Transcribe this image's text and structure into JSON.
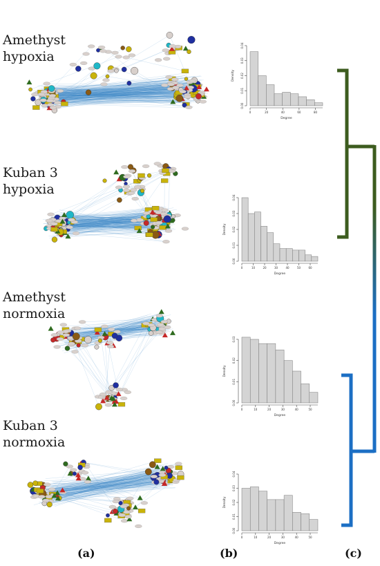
{
  "conditions": [
    {
      "line1": "Amethyst",
      "line2": "hypoxia"
    },
    {
      "line1": "Kuban 3",
      "line2": "hypoxia"
    },
    {
      "line1": "Amethyst",
      "line2": "normoxia"
    },
    {
      "line1": "Kuban 3",
      "line2": "normoxia"
    }
  ],
  "panel_labels": {
    "a": "(a)",
    "b": "(b)",
    "c": "(c)"
  },
  "histograms": [
    {
      "xlabel": "Degree",
      "ylabel": "Density",
      "yticks": [
        "0.00",
        "0.01",
        "0.02",
        "0.03",
        "0.04"
      ],
      "xticks": [
        "0",
        "20",
        "40",
        "60",
        "80"
      ],
      "values": [
        0.036,
        0.02,
        0.014,
        0.008,
        0.009,
        0.008,
        0.006,
        0.004,
        0.002
      ]
    },
    {
      "xlabel": "Degree",
      "ylabel": "Density",
      "yticks": [
        "0.00",
        "0.01",
        "0.02",
        "0.03",
        "0.04"
      ],
      "xticks": [
        "0",
        "10",
        "20",
        "30",
        "40",
        "50",
        "60"
      ],
      "values": [
        0.04,
        0.03,
        0.031,
        0.022,
        0.018,
        0.011,
        0.008,
        0.008,
        0.007,
        0.007,
        0.004,
        0.003
      ]
    },
    {
      "xlabel": "Degree",
      "ylabel": "Density",
      "yticks": [
        "0.00",
        "0.01",
        "0.02",
        "0.03"
      ],
      "xticks": [
        "0",
        "10",
        "20",
        "30",
        "40",
        "50"
      ],
      "values": [
        0.031,
        0.03,
        0.028,
        0.028,
        0.025,
        0.02,
        0.015,
        0.009,
        0.005
      ]
    },
    {
      "xlabel": "Degree",
      "ylabel": "Density",
      "yticks": [
        "0.00",
        "0.01",
        "0.02",
        "0.03",
        "0.04"
      ],
      "xticks": [
        "0",
        "10",
        "20",
        "30",
        "40",
        "50"
      ],
      "values": [
        0.03,
        0.031,
        0.028,
        0.022,
        0.022,
        0.025,
        0.013,
        0.012,
        0.008
      ]
    }
  ],
  "colors": {
    "edge": "#3a86c8",
    "dendro_green": "#3d5c1f",
    "dendro_blue": "#1c6fc4",
    "hist_fill": "#d4d4d4",
    "node_gold": "#c9b30a",
    "node_navy": "#1f2fa0",
    "node_teal": "#1fb7c7",
    "node_green": "#2f6b1f",
    "node_red": "#c62828",
    "node_brown": "#8a5a14",
    "node_grey": "#d8d0cc"
  }
}
